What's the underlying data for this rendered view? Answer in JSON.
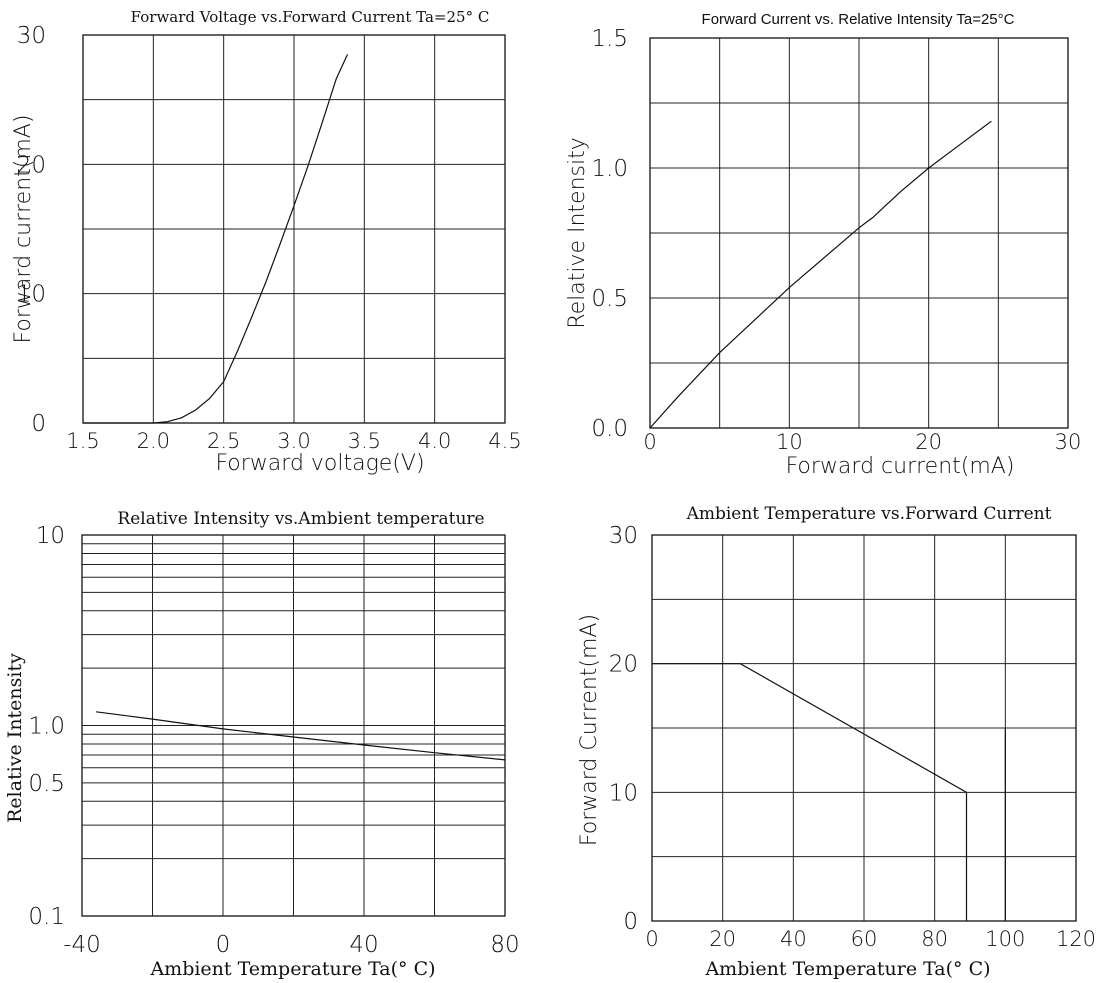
{
  "chart_data": [
    {
      "type": "line",
      "title": "Forward Voltage vs.Forward Current Ta=25° C",
      "xlabel": "Forward voltage(V)",
      "ylabel": "Forward current(mA)",
      "xlim": [
        1.5,
        4.5
      ],
      "ylim": [
        0,
        30
      ],
      "x_ticks": [
        "1.5",
        "2.0",
        "2.5",
        "3.0",
        "3.5",
        "4.0",
        "4.5"
      ],
      "y_ticks": [
        "0",
        "10",
        "20",
        "30"
      ],
      "grid": true,
      "series": [
        {
          "x": [
            1.5,
            2.0,
            2.1,
            2.2,
            2.3,
            2.4,
            2.5,
            2.6,
            2.7,
            2.8,
            2.9,
            3.0,
            3.1,
            3.2,
            3.3,
            3.38
          ],
          "y": [
            0,
            0,
            0.1,
            0.4,
            1.0,
            1.9,
            3.2,
            5.6,
            8.2,
            10.9,
            13.8,
            16.8,
            19.9,
            23.2,
            26.6,
            28.5
          ]
        }
      ]
    },
    {
      "type": "line",
      "title": "Forward Current vs. Relative Intensity  Ta=25°C",
      "xlabel": "Forward current(mA)",
      "ylabel": "Relative Intensity",
      "xlim": [
        0,
        30
      ],
      "ylim": [
        0,
        1.5
      ],
      "x_ticks": [
        "0",
        "10",
        "20",
        "30"
      ],
      "y_ticks": [
        "0.0",
        "0.5",
        "1.0",
        "1.5"
      ],
      "grid": true,
      "series": [
        {
          "x": [
            0,
            2,
            5,
            10,
            15,
            16,
            18,
            20,
            22,
            24.5
          ],
          "y": [
            0,
            0.12,
            0.29,
            0.54,
            0.77,
            0.81,
            0.91,
            1.0,
            1.08,
            1.18
          ]
        }
      ]
    },
    {
      "type": "line",
      "title": "Relative Intensity vs.Ambient temperature",
      "xlabel": "Ambient Temperature Ta(° C)",
      "ylabel": "Relative Intensity",
      "xlim": [
        -40,
        80
      ],
      "ylim": [
        0.1,
        10
      ],
      "log_y": true,
      "x_ticks": [
        "-40",
        "0",
        "40",
        "80"
      ],
      "y_ticks": [
        "0.1",
        "0.5",
        "1.0",
        "10"
      ],
      "grid": true,
      "series": [
        {
          "x": [
            -36,
            -20,
            0,
            20,
            40,
            60,
            80
          ],
          "y": [
            1.18,
            1.08,
            0.96,
            0.87,
            0.79,
            0.72,
            0.66
          ]
        }
      ]
    },
    {
      "type": "line",
      "title": "Ambient Temperature vs.Forward Current",
      "xlabel": "Ambient Temperature Ta(° C)",
      "ylabel": "Forward Current(mA)",
      "xlim": [
        0,
        120
      ],
      "ylim": [
        0,
        30
      ],
      "x_ticks": [
        "0",
        "20",
        "40",
        "60",
        "80",
        "100",
        "120"
      ],
      "y_ticks": [
        "0",
        "10",
        "20",
        "30"
      ],
      "grid": true,
      "series": [
        {
          "x": [
            0,
            25,
            89,
            89
          ],
          "y": [
            20,
            20,
            10,
            0
          ]
        }
      ]
    }
  ]
}
